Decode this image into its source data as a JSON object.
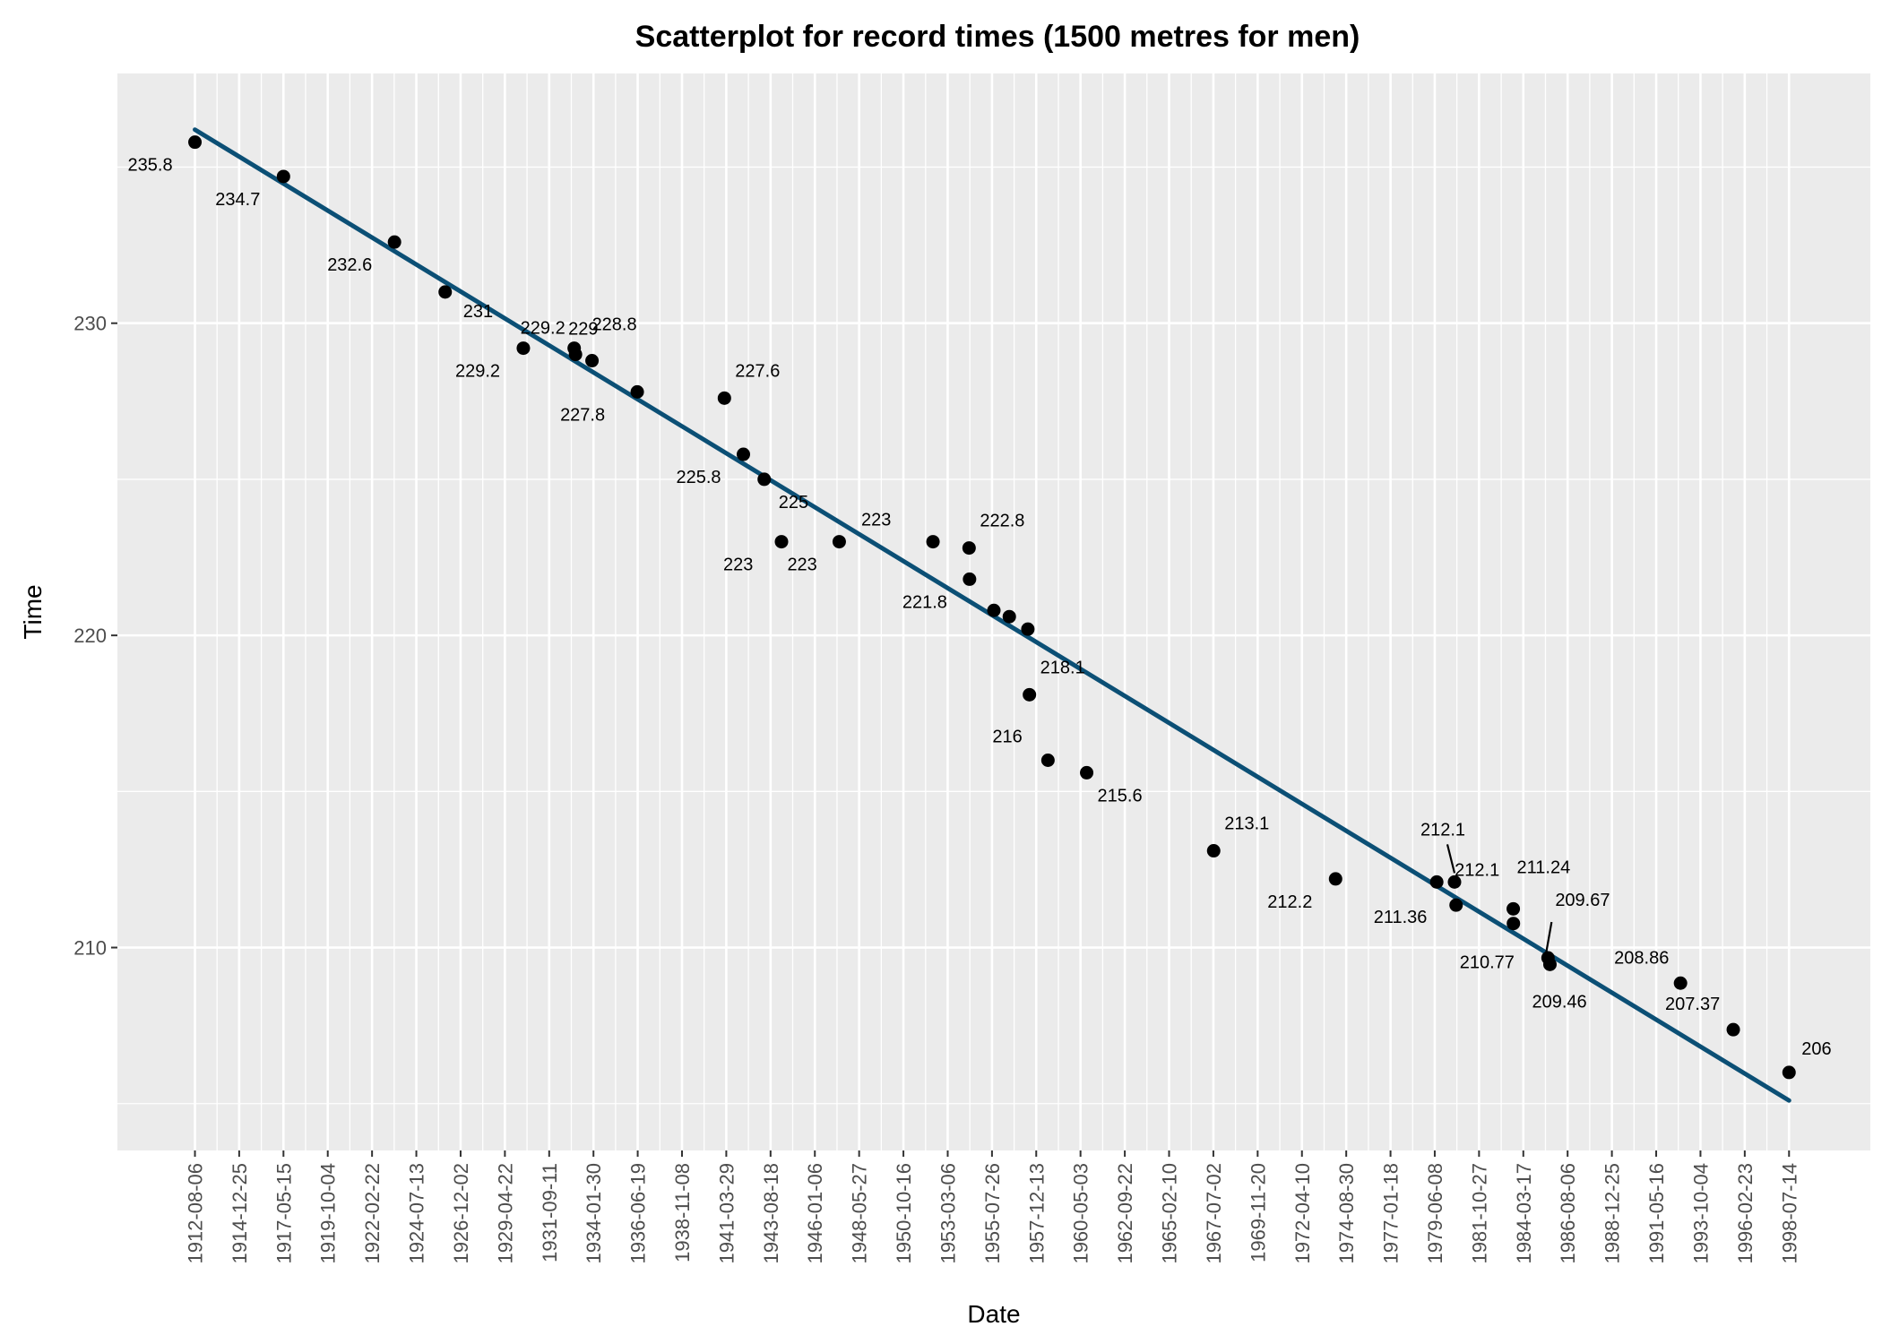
{
  "chart_data": {
    "type": "scatter",
    "title": "Scatterplot for record times (1500 metres for men)",
    "xlabel": "Date",
    "ylabel": "Time",
    "y_ticks": [
      210,
      220,
      230
    ],
    "ylim": [
      203.5,
      238
    ],
    "x_ticks": [
      "1912-08-06",
      "1914-12-25",
      "1917-05-15",
      "1919-10-04",
      "1922-02-22",
      "1924-07-13",
      "1926-12-02",
      "1929-04-22",
      "1931-09-11",
      "1934-01-30",
      "1936-06-19",
      "1938-11-08",
      "1941-03-29",
      "1943-08-18",
      "1946-01-06",
      "1948-05-27",
      "1950-10-16",
      "1953-03-06",
      "1955-07-26",
      "1957-12-13",
      "1960-05-03",
      "1962-09-22",
      "1965-02-10",
      "1967-07-02",
      "1969-11-20",
      "1972-04-10",
      "1974-08-30",
      "1977-01-18",
      "1979-06-08",
      "1981-10-27",
      "1984-03-17",
      "1986-08-06",
      "1988-12-25",
      "1991-05-16",
      "1993-10-04",
      "1996-02-23",
      "1998-07-14"
    ],
    "xlim": [
      "1908-06-01",
      "2002-12-01"
    ],
    "grid": true,
    "trend_line": {
      "color": "#0b4f75",
      "from": {
        "x": "1912-08-06",
        "y": 236.2
      },
      "to": {
        "x": "1998-07-14",
        "y": 205.1
      }
    },
    "points": [
      {
        "x": "1912-08-06",
        "y": 235.8,
        "label": "235.8"
      },
      {
        "x": "1917-05-15",
        "y": 234.7,
        "label": "234.7"
      },
      {
        "x": "1923-05-10",
        "y": 232.6,
        "label": "232.6"
      },
      {
        "x": "1926-02-01",
        "y": 231.0,
        "label": "231"
      },
      {
        "x": "1930-04-20",
        "y": 229.2,
        "label": "229.2"
      },
      {
        "x": "1933-01-15",
        "y": 229.2,
        "label": "229.2"
      },
      {
        "x": "1933-02-10",
        "y": 229.0,
        "label": "229"
      },
      {
        "x": "1934-01-01",
        "y": 228.8,
        "label": "228.8"
      },
      {
        "x": "1936-06-10",
        "y": 227.8,
        "label": "227.8"
      },
      {
        "x": "1941-02-20",
        "y": 227.6,
        "label": "227.6"
      },
      {
        "x": "1942-03-01",
        "y": 225.8,
        "label": "225.8"
      },
      {
        "x": "1943-04-15",
        "y": 225.0,
        "label": "225"
      },
      {
        "x": "1944-03-20",
        "y": 223.0,
        "label": "223"
      },
      {
        "x": "1947-05-01",
        "y": 223.0,
        "label": "223"
      },
      {
        "x": "1952-05-20",
        "y": 223.0,
        "label": "223"
      },
      {
        "x": "1954-05-01",
        "y": 222.8,
        "label": "222.8"
      },
      {
        "x": "1954-05-10",
        "y": 221.8,
        "label": "221.8"
      },
      {
        "x": "1955-09-01",
        "y": 220.8,
        "label": ""
      },
      {
        "x": "1956-07-01",
        "y": 220.6,
        "label": ""
      },
      {
        "x": "1957-07-01",
        "y": 220.2,
        "label": ""
      },
      {
        "x": "1957-08-01",
        "y": 218.1,
        "label": "218.1"
      },
      {
        "x": "1958-08-01",
        "y": 216.0,
        "label": "216"
      },
      {
        "x": "1960-09-01",
        "y": 215.6,
        "label": "215.6"
      },
      {
        "x": "1967-07-08",
        "y": 213.1,
        "label": "213.1"
      },
      {
        "x": "1974-02-01",
        "y": 212.2,
        "label": "212.2"
      },
      {
        "x": "1979-07-17",
        "y": 212.1,
        "label": "212.1"
      },
      {
        "x": "1980-07-01",
        "y": 212.1,
        "label": "212.1"
      },
      {
        "x": "1980-08-01",
        "y": 211.36,
        "label": "211.36"
      },
      {
        "x": "1983-09-01",
        "y": 211.24,
        "label": "211.24"
      },
      {
        "x": "1983-09-04",
        "y": 210.77,
        "label": "210.77"
      },
      {
        "x": "1985-07-16",
        "y": 209.67,
        "label": "209.67"
      },
      {
        "x": "1985-08-23",
        "y": 209.46,
        "label": "209.46"
      },
      {
        "x": "1992-09-06",
        "y": 208.86,
        "label": "208.86"
      },
      {
        "x": "1995-07-12",
        "y": 207.37,
        "label": "207.37"
      },
      {
        "x": "1998-07-14",
        "y": 206.0,
        "label": "206"
      }
    ]
  }
}
